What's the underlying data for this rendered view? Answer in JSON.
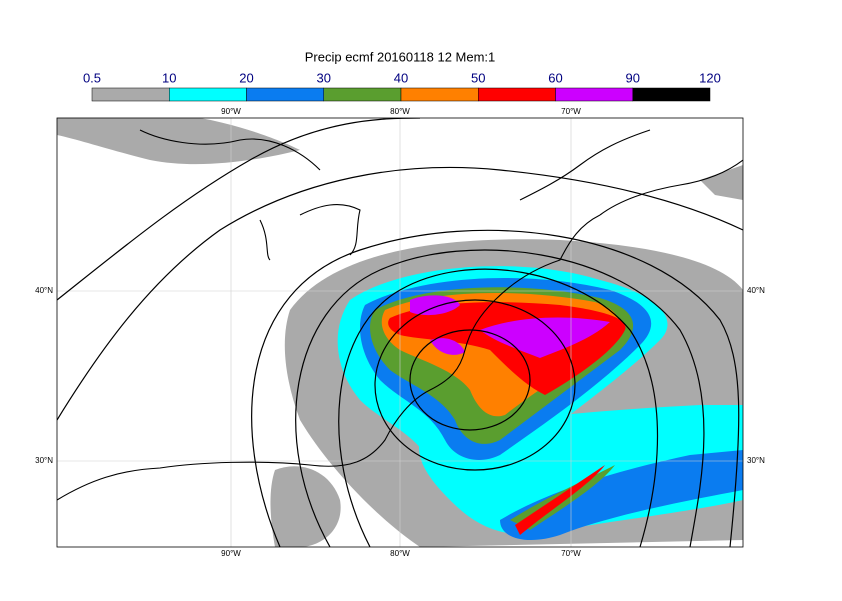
{
  "title": "Precip ecmf 20160118 12 Mem:1",
  "colorbar": {
    "levels": [
      0.5,
      10,
      20,
      30,
      40,
      50,
      60,
      90,
      120
    ],
    "colors": [
      "#aaaaaa",
      "#00ffff",
      "#0a7cf0",
      "#5a9e2f",
      "#ff8000",
      "#ff0000",
      "#cc00ff",
      "#000000"
    ]
  },
  "map": {
    "lon_labels": [
      "90°W",
      "80°W",
      "70°W"
    ],
    "lat_labels": [
      "40°N",
      "30°N"
    ]
  }
}
